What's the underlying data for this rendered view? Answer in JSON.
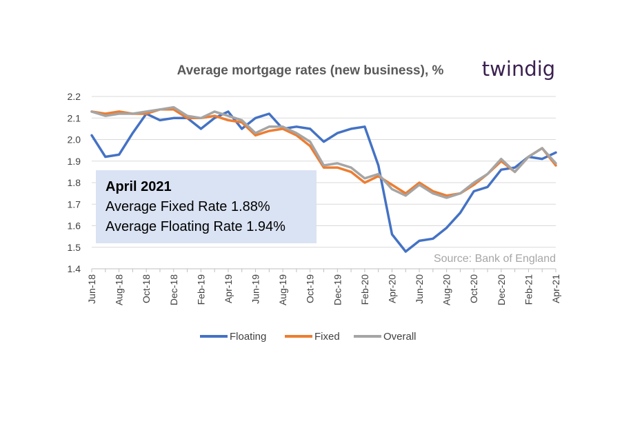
{
  "chart_data": {
    "type": "line",
    "title": "Average mortgage rates (new business), %",
    "brand": "twindig",
    "source": "Source: Bank of England",
    "categories": [
      "Jun-18",
      "Jul-18",
      "Aug-18",
      "Sep-18",
      "Oct-18",
      "Nov-18",
      "Dec-18",
      "Jan-19",
      "Feb-19",
      "Mar-19",
      "Apr-19",
      "May-19",
      "Jun-19",
      "Jul-19",
      "Aug-19",
      "Sep-19",
      "Oct-19",
      "Nov-19",
      "Dec-19",
      "Jan-20",
      "Feb-20",
      "Mar-20",
      "Apr-20",
      "May-20",
      "Jun-20",
      "Jul-20",
      "Aug-20",
      "Sep-20",
      "Oct-20",
      "Nov-20",
      "Dec-20",
      "Jan-21",
      "Feb-21",
      "Mar-21",
      "Apr-21"
    ],
    "tick_labels": [
      "Jun-18",
      "Aug-18",
      "Oct-18",
      "Dec-18",
      "Feb-19",
      "Apr-19",
      "Jun-19",
      "Aug-19",
      "Oct-19",
      "Dec-19",
      "Feb-20",
      "Apr-20",
      "Jun-20",
      "Aug-20",
      "Oct-20",
      "Dec-20",
      "Feb-21",
      "Apr-21"
    ],
    "y_ticks": [
      "1.4",
      "1.5",
      "1.6",
      "1.7",
      "1.8",
      "1.9",
      "2.0",
      "2.1",
      "2.2"
    ],
    "ylim": [
      1.4,
      2.2
    ],
    "grid": true,
    "legend_position": "bottom",
    "series": [
      {
        "name": "Floating",
        "color": "#4472c4",
        "values": [
          2.02,
          1.92,
          1.93,
          2.03,
          2.12,
          2.09,
          2.1,
          2.1,
          2.05,
          2.1,
          2.13,
          2.05,
          2.1,
          2.12,
          2.05,
          2.06,
          2.05,
          1.99,
          2.03,
          2.05,
          2.06,
          1.88,
          1.56,
          1.48,
          1.53,
          1.54,
          1.59,
          1.66,
          1.76,
          1.78,
          1.86,
          1.87,
          1.92,
          1.91,
          1.94
        ]
      },
      {
        "name": "Fixed",
        "color": "#ed7d31",
        "values": [
          2.13,
          2.12,
          2.13,
          2.12,
          2.12,
          2.14,
          2.14,
          2.1,
          2.1,
          2.11,
          2.09,
          2.08,
          2.02,
          2.04,
          2.05,
          2.02,
          1.97,
          1.87,
          1.87,
          1.85,
          1.8,
          1.83,
          1.79,
          1.75,
          1.8,
          1.76,
          1.74,
          1.75,
          1.79,
          1.84,
          1.9,
          1.85,
          1.92,
          1.96,
          1.88
        ]
      },
      {
        "name": "Overall",
        "color": "#a5a5a5",
        "values": [
          2.13,
          2.11,
          2.12,
          2.12,
          2.13,
          2.14,
          2.15,
          2.11,
          2.1,
          2.13,
          2.11,
          2.09,
          2.03,
          2.06,
          2.06,
          2.03,
          1.99,
          1.88,
          1.89,
          1.87,
          1.82,
          1.84,
          1.77,
          1.74,
          1.79,
          1.75,
          1.73,
          1.75,
          1.8,
          1.84,
          1.91,
          1.85,
          1.92,
          1.96,
          1.89
        ]
      }
    ],
    "annotation": {
      "title": "April 2021",
      "lines": [
        "Average Fixed Rate 1.88%",
        "Average Floating Rate 1.94%"
      ],
      "background": "#dae3f3"
    }
  }
}
